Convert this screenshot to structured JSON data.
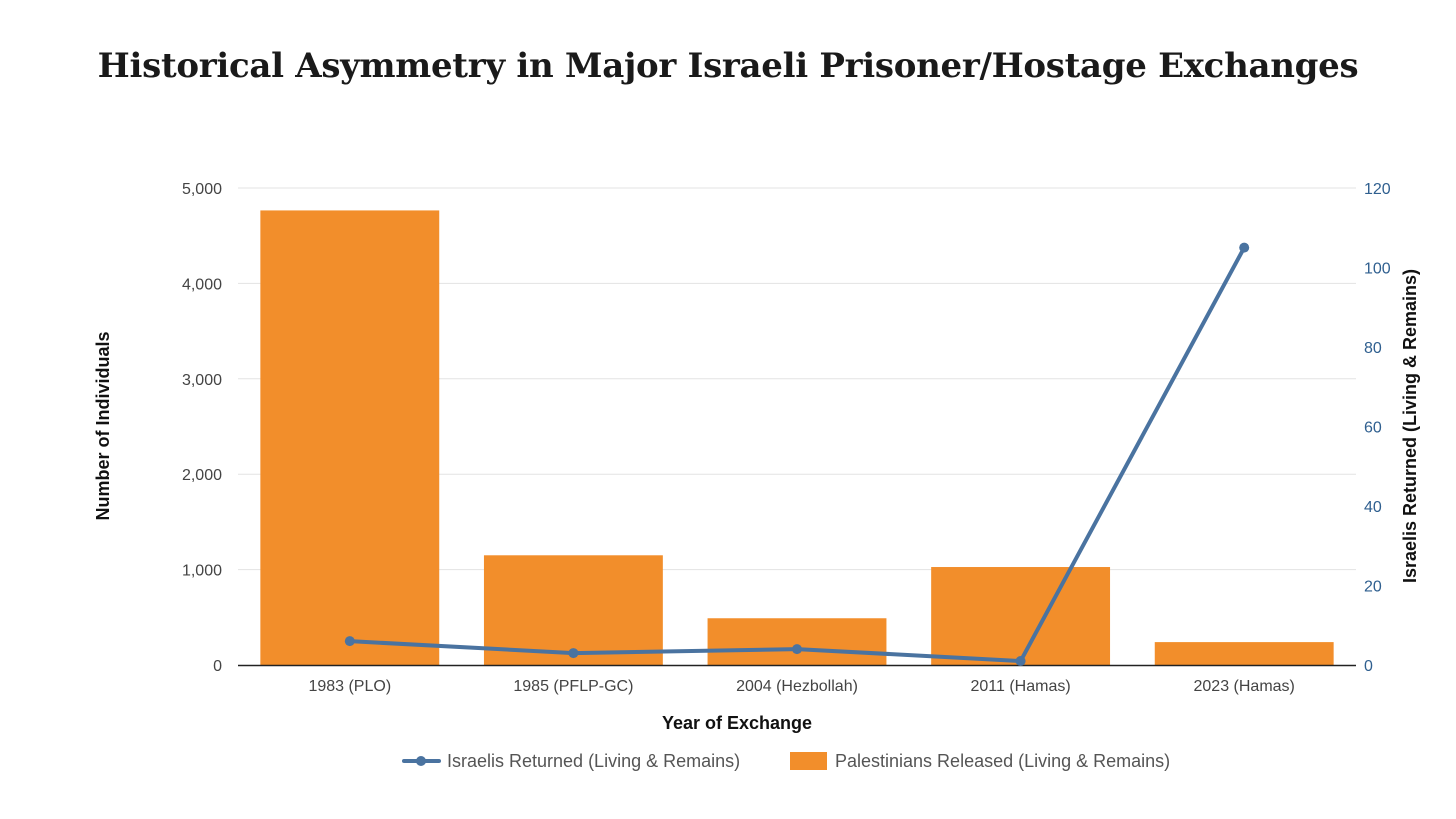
{
  "chart_data": {
    "type": "bar",
    "title": "Historical Asymmetry in Major Israeli Prisoner/Hostage Exchanges",
    "xlabel": "Year of Exchange",
    "ylabel": "Number of Individuals",
    "y2label": "Israelis Returned (Living & Remains)",
    "categories": [
      "1983 (PLO)",
      "1985 (PFLP-GC)",
      "2004 (Hezbollah)",
      "2011 (Hamas)",
      "2023 (Hamas)"
    ],
    "ylim": [
      0,
      5000
    ],
    "yticks": [
      0,
      1000,
      2000,
      3000,
      4000,
      5000
    ],
    "ytick_labels": [
      "0",
      "1,000",
      "2,000",
      "3,000",
      "4,000",
      "5,000"
    ],
    "y2lim": [
      0,
      120
    ],
    "y2ticks": [
      0,
      20,
      40,
      60,
      80,
      100,
      120
    ],
    "y2tick_labels": [
      "0",
      "20",
      "40",
      "60",
      "80",
      "100",
      "120"
    ],
    "grid": true,
    "legend_position": "bottom",
    "series": [
      {
        "name": "Israelis Returned (Living & Remains)",
        "type": "line",
        "axis": "right",
        "color": "#4a73a0",
        "values": [
          6,
          3,
          4,
          1,
          105
        ]
      },
      {
        "name": "Palestinians Released (Living & Remains)",
        "type": "bar",
        "axis": "left",
        "color": "#f28e2b",
        "values": [
          4765,
          1150,
          490,
          1027,
          240
        ]
      }
    ]
  }
}
